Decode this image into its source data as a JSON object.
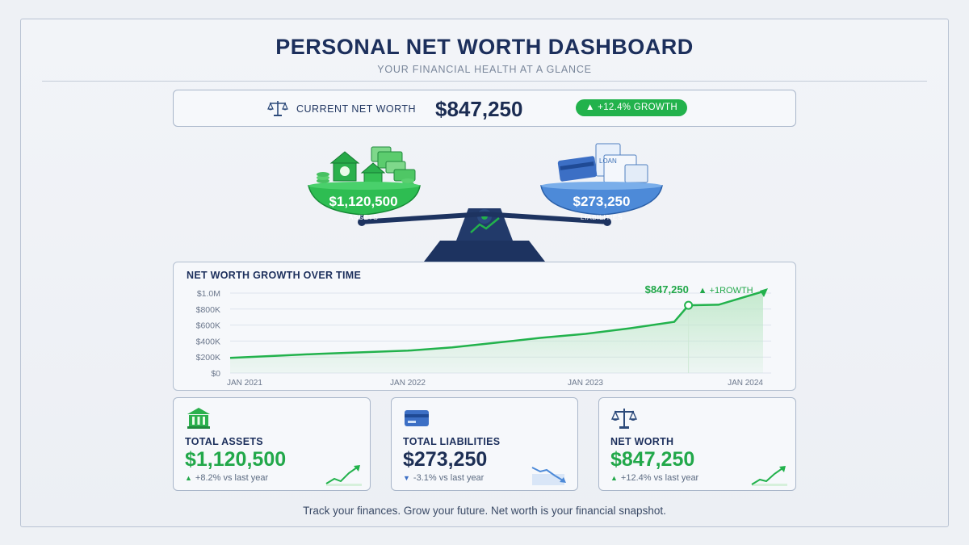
{
  "header": {
    "title": "PERSONAL NET WORTH DASHBOARD",
    "subtitle": "YOUR FINANCIAL HEALTH AT A GLANCE"
  },
  "net_worth_bar": {
    "label": "CURRENT NET WORTH",
    "value": "$847,250",
    "growth": "▲ +12.4% GROWTH"
  },
  "scale": {
    "assets_amount": "$1,120,500",
    "assets_label": "ASSETS",
    "liabilities_amount": "$273,250",
    "liabilities_label": "LIABILITIES",
    "loan_doc_text": "LOAN"
  },
  "chart": {
    "title": "NET WORTH GROWTH OVER TIME",
    "annotation_value": "$847,250",
    "annotation_growth": "▲ +1ROWTH"
  },
  "chart_data": {
    "type": "area",
    "title": "NET WORTH GROWTH OVER TIME",
    "x_ticks": [
      "JAN 2021",
      "JAN 2022",
      "JAN 2023",
      "JAN 2024"
    ],
    "y_ticks": [
      "$0",
      "$200K",
      "$400K",
      "$600K",
      "$800K",
      "$1.0M"
    ],
    "ylim": [
      0,
      1000000
    ],
    "xlim": [
      2021.0,
      2024.0
    ],
    "grid": true,
    "series": [
      {
        "points": [
          [
            2021.0,
            190000
          ],
          [
            2021.25,
            215000
          ],
          [
            2021.5,
            240000
          ],
          [
            2021.75,
            260000
          ],
          [
            2022.0,
            280000
          ],
          [
            2022.25,
            320000
          ],
          [
            2022.5,
            380000
          ],
          [
            2022.75,
            440000
          ],
          [
            2023.0,
            490000
          ],
          [
            2023.25,
            560000
          ],
          [
            2023.5,
            640000
          ],
          [
            2023.58,
            847250
          ],
          [
            2023.75,
            855000
          ],
          [
            2024.0,
            1020000
          ]
        ]
      }
    ],
    "highlight": {
      "x": 2023.58,
      "y": 847250,
      "label": "$847,250"
    },
    "colors": {
      "line": "#22b24c",
      "fill": "#bfe8c9"
    }
  },
  "cards": {
    "assets": {
      "label": "TOTAL ASSETS",
      "value": "$1,120,500",
      "change": "+8.2% vs last year",
      "arrow": "▲",
      "color": "#22a84a",
      "icon": "bank-icon"
    },
    "liabilities": {
      "label": "TOTAL LIABILITIES",
      "value": "$273,250",
      "change": "-3.1% vs last year",
      "arrow": "▼",
      "color": "#1d2f55",
      "icon": "credit-card-icon"
    },
    "networth": {
      "label": "NET WORTH",
      "value": "$847,250",
      "change": "+12.4% vs last year",
      "arrow": "▲",
      "color": "#22a84a",
      "icon": "scale-icon"
    }
  },
  "footer": {
    "tagline": "Track your finances. Grow your future. Net worth is your financial snapshot."
  }
}
